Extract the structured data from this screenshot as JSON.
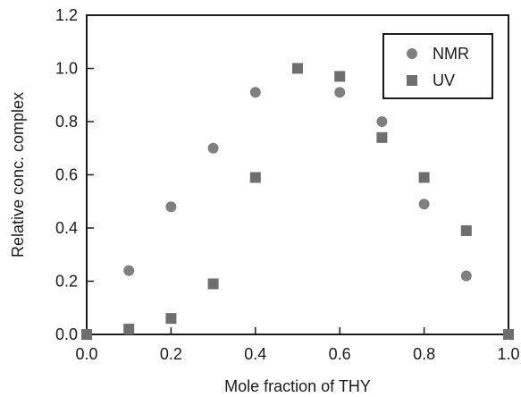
{
  "chart_data": {
    "type": "scatter",
    "title": "",
    "xlabel": "Mole fraction of THY",
    "ylabel": "Relative conc. complex",
    "xlim": [
      0.0,
      1.0
    ],
    "ylim": [
      0.0,
      1.2
    ],
    "x_ticks": [
      "0.0",
      "0.2",
      "0.4",
      "0.6",
      "0.8",
      "1.0"
    ],
    "y_ticks": [
      "0.0",
      "0.2",
      "0.4",
      "0.6",
      "0.8",
      "1.0",
      "1.2"
    ],
    "grid": false,
    "legend_position": "top-right",
    "series": [
      {
        "name": "NMR",
        "marker": "circle",
        "color": "#808080",
        "points": [
          {
            "x": 0.0,
            "y": 0.0
          },
          {
            "x": 0.1,
            "y": 0.24
          },
          {
            "x": 0.2,
            "y": 0.48
          },
          {
            "x": 0.3,
            "y": 0.7
          },
          {
            "x": 0.4,
            "y": 0.91
          },
          {
            "x": 0.6,
            "y": 0.91
          },
          {
            "x": 0.7,
            "y": 0.8
          },
          {
            "x": 0.8,
            "y": 0.49
          },
          {
            "x": 0.9,
            "y": 0.22
          },
          {
            "x": 1.0,
            "y": 0.0
          }
        ]
      },
      {
        "name": "UV",
        "marker": "square",
        "color": "#6e6e6e",
        "points": [
          {
            "x": 0.0,
            "y": 0.0
          },
          {
            "x": 0.1,
            "y": 0.02
          },
          {
            "x": 0.2,
            "y": 0.06
          },
          {
            "x": 0.3,
            "y": 0.19
          },
          {
            "x": 0.4,
            "y": 0.59
          },
          {
            "x": 0.5,
            "y": 1.0
          },
          {
            "x": 0.6,
            "y": 0.97
          },
          {
            "x": 0.7,
            "y": 0.74
          },
          {
            "x": 0.8,
            "y": 0.59
          },
          {
            "x": 0.9,
            "y": 0.39
          },
          {
            "x": 1.0,
            "y": 0.0
          }
        ]
      }
    ]
  }
}
